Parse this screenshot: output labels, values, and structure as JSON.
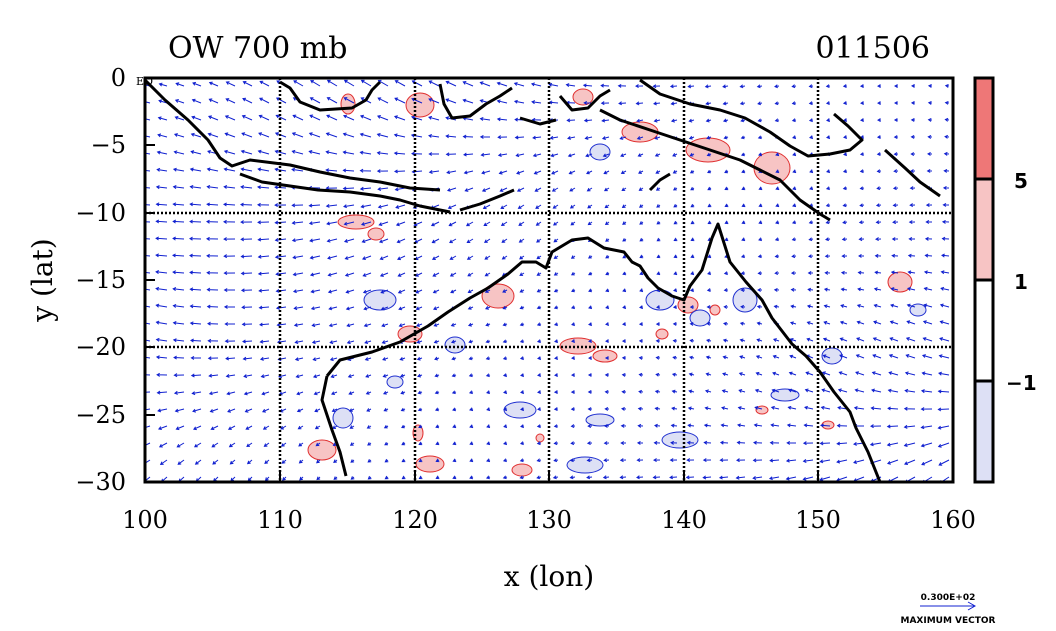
{
  "title_left": "OW 700 mb",
  "title_right": "011506",
  "xlabel": "x (lon)",
  "ylabel": "y (lat)",
  "eq_label": "EQ",
  "x_ticks": [
    "100",
    "110",
    "120",
    "130",
    "140",
    "150",
    "160"
  ],
  "y_ticks": [
    "0",
    "−5",
    "−10",
    "−15",
    "−20",
    "−25",
    "−30"
  ],
  "colorbar": {
    "labels": [
      "5",
      "1",
      "−1"
    ],
    "colors": [
      "#ee7777",
      "#f7c4c4",
      "#ffffff",
      "#dde0f5"
    ]
  },
  "vector_key": {
    "value": "0.300E+02",
    "label": "MAXIMUM VECTOR"
  },
  "map_colors": {
    "positive_contour": "#e03030",
    "negative_contour": "#2030d0",
    "wind_vectors": "#1020d0",
    "coastline": "#000000",
    "grid": "#000000"
  }
}
